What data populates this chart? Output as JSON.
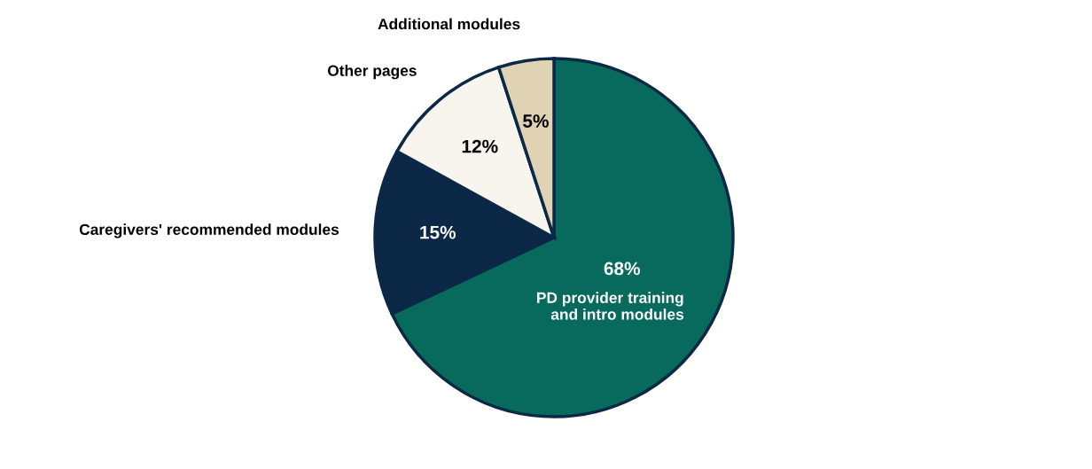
{
  "chart_data": {
    "type": "pie",
    "categories": [
      "PD provider training and intro modules",
      "Caregivers' recommended modules",
      "Other pages",
      "Additional modules"
    ],
    "values": [
      68,
      15,
      12,
      5
    ],
    "value_labels": [
      "68%",
      "15%",
      "12%",
      "5%"
    ],
    "colors": [
      "#076a5c",
      "#0b2946",
      "#f8f5ee",
      "#e0d3b4"
    ],
    "legend": false
  }
}
